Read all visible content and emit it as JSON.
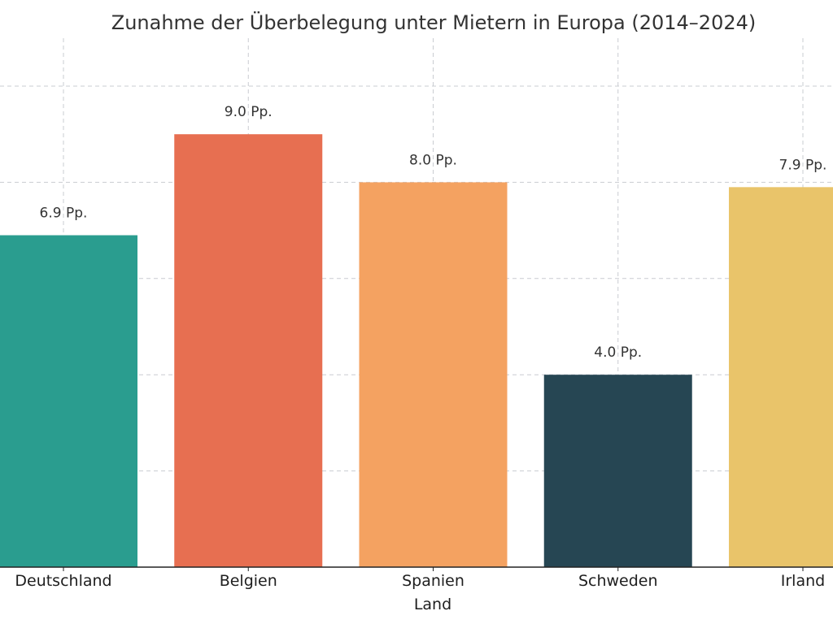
{
  "chart_data": {
    "type": "bar",
    "title": "Zunahme der Überbelegung unter Mietern in Europa (2014–2024)",
    "xlabel": "Land",
    "ylabel": "",
    "categories": [
      "Deutschland",
      "Belgien",
      "Spanien",
      "Schweden",
      "Irland"
    ],
    "values": [
      6.9,
      9.0,
      8.0,
      4.0,
      7.9
    ],
    "data_labels": [
      "6.9 Pp.",
      "9.0 Pp.",
      "8.0 Pp.",
      "4.0 Pp.",
      "7.9 Pp."
    ],
    "colors": [
      "#2a9d8f",
      "#e76f51",
      "#f4a261",
      "#264653",
      "#e9c46a"
    ],
    "ylim": [
      0,
      10.0
    ],
    "grid": true
  }
}
